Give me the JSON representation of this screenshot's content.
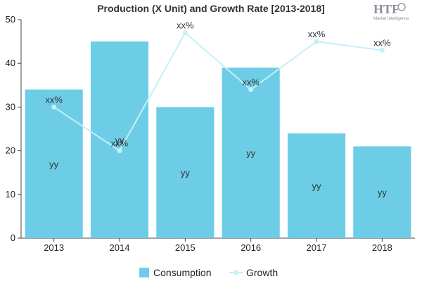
{
  "logo": {
    "main": "HTF",
    "sub": "Market Intelligence"
  },
  "chart_data": {
    "type": "bar",
    "title": "Production (X Unit) and Growth Rate [2013-2018]",
    "categories": [
      "2013",
      "2014",
      "2015",
      "2016",
      "2017",
      "2018"
    ],
    "ylim": [
      0,
      50
    ],
    "yticks": [
      0,
      10,
      20,
      30,
      40,
      50
    ],
    "grid": false,
    "legend_position": "bottom",
    "series": [
      {
        "name": "Consumption",
        "type": "bar",
        "color": "#6dcde6",
        "values": [
          34,
          45,
          30,
          39,
          24,
          21
        ],
        "labels": [
          "yy",
          "yy",
          "yy",
          "yy",
          "yy",
          "yy"
        ]
      },
      {
        "name": "Growth",
        "type": "line",
        "color": "#c3f1f6",
        "values": [
          30,
          20,
          47,
          34,
          45,
          43
        ],
        "labels": [
          "xx%",
          "xx%",
          "xx%",
          "xx%",
          "xx%",
          "xx%"
        ]
      }
    ]
  }
}
